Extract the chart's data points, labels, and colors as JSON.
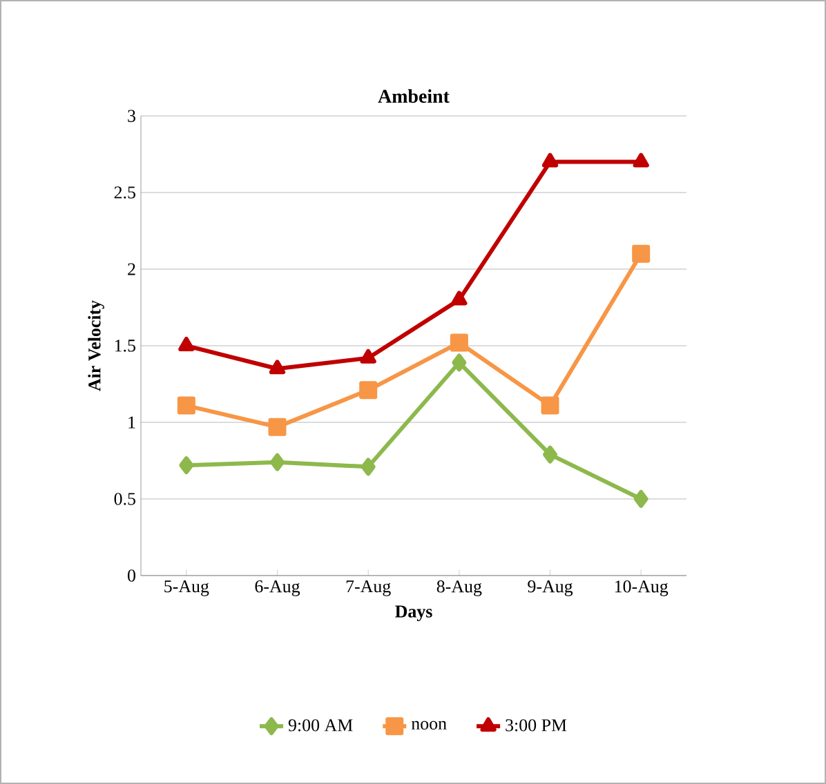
{
  "chart_data": {
    "type": "line",
    "title": "Ambeint",
    "xlabel": "Days",
    "ylabel": "Air Velocity",
    "categories": [
      "5-Aug",
      "6-Aug",
      "7-Aug",
      "8-Aug",
      "9-Aug",
      "10-Aug"
    ],
    "series": [
      {
        "name": "9:00 AM",
        "color": "#8db94c",
        "marker": "diamond",
        "values": [
          0.72,
          0.74,
          0.71,
          1.39,
          0.79,
          0.5
        ]
      },
      {
        "name": "noon",
        "color": "#f79646",
        "marker": "square",
        "values": [
          1.11,
          0.97,
          1.21,
          1.52,
          1.11,
          2.1
        ]
      },
      {
        "name": "3:00 PM",
        "color": "#c00000",
        "marker": "triangle",
        "values": [
          1.5,
          1.35,
          1.42,
          1.8,
          2.7,
          2.7
        ]
      }
    ],
    "ylim": [
      0,
      3
    ],
    "yticks": [
      0,
      0.5,
      1,
      1.5,
      2,
      2.5,
      3
    ],
    "grid": "y",
    "legend": "bottom",
    "line_style": "solid"
  }
}
